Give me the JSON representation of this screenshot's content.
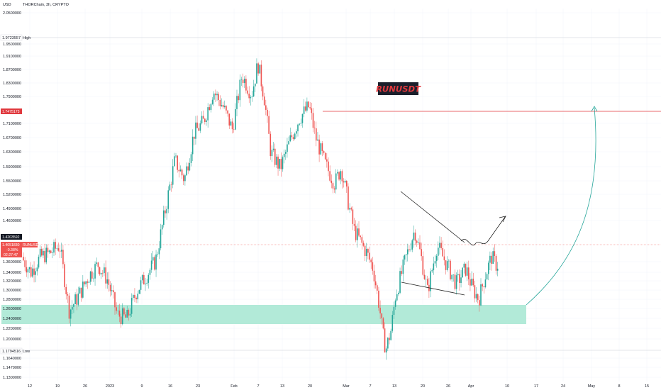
{
  "header": {
    "currency": "USD",
    "symbol_line": "THORChain, 3h, CRYPTO"
  },
  "annotation": {
    "text": "RUNUSDT",
    "text_color": "#e0393e",
    "bg_color": "#1b1f2b"
  },
  "colors": {
    "up": "#26a69a",
    "down": "#ef5350",
    "resistance_line": "#e0393e",
    "support_zone": "#b2ead8",
    "arrow_curve": "#26a69a",
    "trendline": "#000000"
  },
  "price_labels": {
    "high_label": "High",
    "high_value": "1.9723557",
    "low_label": "Low",
    "low_value": "1.1794516",
    "resistance_value": "1.7475173",
    "current_price": "1.4203592",
    "current_price_2": "1.4051830",
    "current_change": "-0.38%",
    "current_countdown": "02:27:47",
    "current_symbol": "RUNUSD"
  },
  "chart_data": {
    "type": "candlestick",
    "title": "THORChain, 3h, CRYPTO",
    "ylabel": "USD",
    "ylim": [
      1.12,
      2.06
    ],
    "y_ticks": [
      "2.0500000",
      "1.9500000",
      "1.9100000",
      "1.8700000",
      "1.8300000",
      "1.7900000",
      "1.7100000",
      "1.6700000",
      "1.6300000",
      "1.5900000",
      "1.5500000",
      "1.5200000",
      "1.4900000",
      "1.4600000",
      "1.3600000",
      "1.3400000",
      "1.3200000",
      "1.3000000",
      "1.2800000",
      "1.2600000",
      "1.2400000",
      "1.2200000",
      "1.2000000",
      "1.1640000",
      "1.1470000",
      "1.1300000"
    ],
    "x_ticks": [
      "12",
      "19",
      "26",
      "2023",
      "9",
      "16",
      "23",
      "Feb",
      "7",
      "13",
      "20",
      "Mar",
      "7",
      "13",
      "20",
      "26",
      "Apr",
      "10",
      "17",
      "24",
      "May",
      "8",
      "15"
    ],
    "key_levels": {
      "high": 1.9723557,
      "low": 1.1794516,
      "resistance": 1.7475173,
      "current": 1.405183,
      "support_zone": [
        1.232,
        1.272
      ]
    },
    "price_path": [
      [
        0,
        1.43
      ],
      [
        0.015,
        1.39
      ],
      [
        0.03,
        1.43
      ],
      [
        0.045,
        1.44
      ],
      [
        0.06,
        1.46
      ],
      [
        0.075,
        1.29
      ],
      [
        0.09,
        1.33
      ],
      [
        0.105,
        1.38
      ],
      [
        0.12,
        1.41
      ],
      [
        0.135,
        1.37
      ],
      [
        0.15,
        1.28
      ],
      [
        0.165,
        1.27
      ],
      [
        0.18,
        1.34
      ],
      [
        0.195,
        1.38
      ],
      [
        0.21,
        1.42
      ],
      [
        0.225,
        1.55
      ],
      [
        0.24,
        1.68
      ],
      [
        0.255,
        1.63
      ],
      [
        0.27,
        1.75
      ],
      [
        0.285,
        1.78
      ],
      [
        0.3,
        1.86
      ],
      [
        0.315,
        1.82
      ],
      [
        0.33,
        1.76
      ],
      [
        0.345,
        1.9
      ],
      [
        0.36,
        1.85
      ],
      [
        0.37,
        1.93
      ],
      [
        0.38,
        1.84
      ],
      [
        0.39,
        1.7
      ],
      [
        0.405,
        1.66
      ],
      [
        0.42,
        1.73
      ],
      [
        0.435,
        1.79
      ],
      [
        0.45,
        1.82
      ],
      [
        0.46,
        1.74
      ],
      [
        0.475,
        1.67
      ],
      [
        0.49,
        1.62
      ],
      [
        0.5,
        1.66
      ],
      [
        0.51,
        1.58
      ],
      [
        0.52,
        1.5
      ],
      [
        0.53,
        1.47
      ],
      [
        0.54,
        1.44
      ],
      [
        0.55,
        1.4
      ],
      [
        0.56,
        1.3
      ],
      [
        0.565,
        1.23
      ],
      [
        0.57,
        1.19
      ],
      [
        0.578,
        1.24
      ],
      [
        0.585,
        1.33
      ],
      [
        0.6,
        1.42
      ],
      [
        0.615,
        1.5
      ],
      [
        0.625,
        1.43
      ],
      [
        0.635,
        1.34
      ],
      [
        0.65,
        1.46
      ],
      [
        0.665,
        1.41
      ],
      [
        0.68,
        1.36
      ],
      [
        0.695,
        1.4
      ],
      [
        0.705,
        1.35
      ],
      [
        0.715,
        1.32
      ],
      [
        0.725,
        1.38
      ],
      [
        0.735,
        1.43
      ],
      [
        0.742,
        1.41
      ]
    ],
    "grid": true,
    "annotations": [
      "RUNUSDT",
      "descending triangle",
      "projection arrow to resistance"
    ]
  }
}
